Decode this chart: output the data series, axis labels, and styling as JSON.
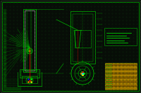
{
  "bg_color": "#070d07",
  "grid_dot_color": "#0d2b0d",
  "line_color": "#00bb00",
  "bright_line_color": "#00ff00",
  "dim_line_color": "#006600",
  "white_line_color": "#cccccc",
  "gray_line_color": "#888888",
  "red_accent": "#cc0000",
  "yellow_accent": "#aaaa00",
  "fig_width": 2.0,
  "fig_height": 1.33,
  "dpi": 100,
  "border_outer": "#223322",
  "border_inner": "#00aa00",
  "title_block_bg": "#7a5a00",
  "title_block_line": "#cc9900",
  "title_block_alt": "#996600"
}
